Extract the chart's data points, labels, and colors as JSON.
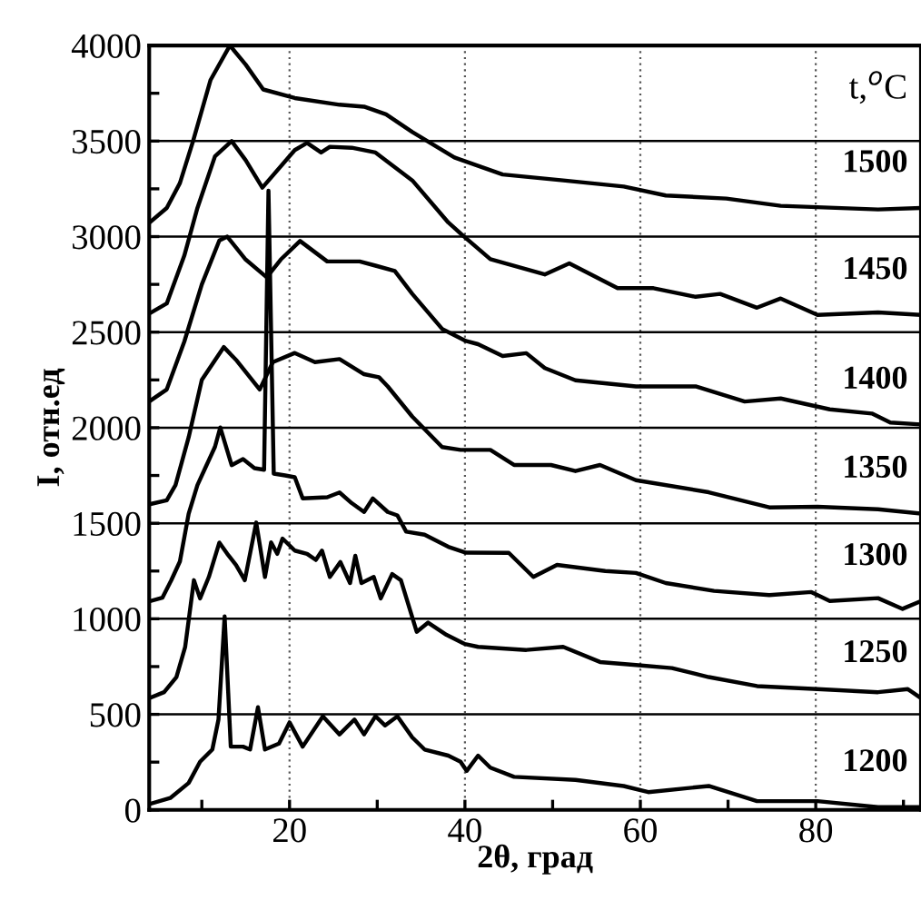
{
  "chart_data": {
    "type": "line",
    "xlabel": "2θ, град",
    "ylabel": "I, отн.ед",
    "legend_title": "t,$^{o}$C",
    "xlim": [
      4,
      92
    ],
    "ylim": [
      0,
      4000
    ],
    "xticks": [
      {
        "value": 10,
        "label": null
      },
      20,
      {
        "value": 30,
        "label": null
      },
      40,
      {
        "value": 50,
        "label": null
      },
      60,
      {
        "value": 70,
        "label": null
      },
      80,
      {
        "value": 90,
        "label": null
      }
    ],
    "yticks": [
      0,
      {
        "value": 250,
        "label": null
      },
      500,
      {
        "value": 750,
        "label": null
      },
      1000,
      {
        "value": 1250,
        "label": null
      },
      1500,
      {
        "value": 1750,
        "label": null
      },
      2000,
      {
        "value": 2250,
        "label": null
      },
      2500,
      {
        "value": 2750,
        "label": null
      },
      3000,
      {
        "value": 3250,
        "label": null
      },
      3500,
      {
        "value": 3750,
        "label": null
      },
      4000
    ],
    "grid": true,
    "legend": false,
    "marker": "none",
    "line_style": "solid",
    "series": [
      {
        "name": "1500",
        "color": "#000000",
        "x": [
          4,
          6,
          7.5,
          9,
          11,
          13.2,
          15,
          17,
          20.6,
          25.7,
          28.5,
          31,
          34,
          38.8,
          44.3,
          51.2,
          58.1,
          62.9,
          69.8,
          76,
          87.1,
          92
        ],
        "values": [
          3072,
          3150,
          3280,
          3500,
          3820,
          4000,
          3900,
          3770,
          3725,
          3690,
          3680,
          3640,
          3547,
          3414,
          3325,
          3294,
          3262,
          3215,
          3199,
          3161,
          3142,
          3150
        ]
      },
      {
        "name": "1450",
        "color": "#000000",
        "x": [
          4,
          6,
          8,
          9.5,
          11.5,
          13.4,
          15,
          16.9,
          20.6,
          22,
          23.6,
          24.6,
          27.1,
          29.8,
          34,
          38.1,
          40.1,
          42.9,
          49.1,
          51.9,
          57.4,
          61.5,
          66.3,
          69.1,
          73.3,
          76,
          80.2,
          87.1,
          92
        ],
        "values": [
          2597,
          2650,
          2900,
          3150,
          3420,
          3500,
          3400,
          3256,
          3453,
          3490,
          3440,
          3470,
          3465,
          3440,
          3294,
          3074,
          2992,
          2882,
          2802,
          2860,
          2730,
          2730,
          2685,
          2700,
          2628,
          2676,
          2590,
          2603,
          2590
        ]
      },
      {
        "name": "1400",
        "color": "#000000",
        "x": [
          4,
          6,
          8,
          10,
          12,
          12.9,
          15,
          17.4,
          19,
          21.2,
          24.3,
          28,
          29.8,
          32,
          34,
          37.4,
          40.1,
          41.5,
          44.3,
          47,
          49.1,
          52.6,
          59.5,
          66.3,
          71.9,
          76,
          81.6,
          86.4,
          88.5,
          92
        ],
        "values": [
          2137,
          2200,
          2450,
          2750,
          2980,
          3000,
          2880,
          2787,
          2880,
          2977,
          2870,
          2870,
          2848,
          2820,
          2700,
          2517,
          2454,
          2437,
          2375,
          2390,
          2312,
          2248,
          2216,
          2216,
          2137,
          2153,
          2096,
          2074,
          2027,
          2017
        ]
      },
      {
        "name": "1350",
        "color": "#000000",
        "x": [
          4,
          6,
          7,
          8.5,
          10,
          12.5,
          14,
          16.6,
          18.1,
          20.6,
          22.9,
          25.7,
          28.5,
          30.2,
          31.2,
          34,
          37.4,
          39.5,
          42.9,
          45.6,
          49.8,
          52.6,
          55.4,
          59.5,
          67.8,
          74.7,
          80.2,
          87.1,
          92
        ],
        "values": [
          1599,
          1620,
          1700,
          1950,
          2250,
          2422,
          2350,
          2200,
          2343,
          2391,
          2343,
          2359,
          2280,
          2264,
          2216,
          2058,
          1899,
          1884,
          1884,
          1805,
          1805,
          1773,
          1805,
          1725,
          1662,
          1583,
          1586,
          1573,
          1551
        ]
      },
      {
        "name": "1300",
        "color": "#000000",
        "x": [
          4,
          5.5,
          6.5,
          7.5,
          8.5,
          9.5,
          10.5,
          11.5,
          12.1,
          13.4,
          14.7,
          16,
          17.1,
          17.6,
          18.2,
          19.5,
          20.6,
          21.5,
          24.3,
          25.7,
          27.1,
          28.5,
          29.5,
          31.2,
          32.3,
          33.3,
          35.4,
          38.1,
          40.1,
          45,
          47.8,
          50.5,
          56,
          59.5,
          62.9,
          68.4,
          74.7,
          79.5,
          81.6,
          87.1,
          89.9,
          92
        ],
        "values": [
          1091,
          1110,
          1200,
          1300,
          1550,
          1700,
          1800,
          1900,
          2001,
          1804,
          1836,
          1788,
          1780,
          3240,
          1760,
          1750,
          1741,
          1630,
          1636,
          1661,
          1605,
          1559,
          1630,
          1559,
          1541,
          1456,
          1440,
          1377,
          1346,
          1345,
          1219,
          1282,
          1250,
          1240,
          1187,
          1146,
          1124,
          1140,
          1093,
          1108,
          1052,
          1093
        ]
      },
      {
        "name": "1250",
        "color": "#000000",
        "x": [
          4,
          5.7,
          7.1,
          8.1,
          9.1,
          9.8,
          10.8,
          12,
          12.9,
          13.9,
          14.9,
          16.2,
          17.2,
          17.9,
          18.6,
          19.2,
          20.6,
          22,
          23,
          23.7,
          24.6,
          25.8,
          26.9,
          27.5,
          28.2,
          29.6,
          30.4,
          31.7,
          32.7,
          34.5,
          35.8,
          37.9,
          40,
          41.5,
          47,
          51.2,
          55.4,
          59.5,
          63.6,
          67.8,
          73.3,
          80.2,
          87.1,
          90.5,
          92
        ],
        "values": [
          585,
          616,
          695,
          853,
          1202,
          1107,
          1219,
          1399,
          1340,
          1282,
          1202,
          1504,
          1219,
          1400,
          1340,
          1420,
          1357,
          1340,
          1308,
          1357,
          1219,
          1297,
          1187,
          1330,
          1187,
          1219,
          1107,
          1234,
          1202,
          932,
          980,
          916,
          868,
          853,
          837,
          853,
          774,
          758,
          742,
          695,
          648,
          632,
          616,
          632,
          585
        ]
      },
      {
        "name": "1200",
        "color": "#000000",
        "x": [
          4,
          6.4,
          8.5,
          9.8,
          11.2,
          11.9,
          12.6,
          13.3,
          14.7,
          15.5,
          16.4,
          17.2,
          18.8,
          20,
          21.5,
          23.8,
          25.7,
          27.4,
          28.5,
          29.8,
          30.9,
          32.3,
          34,
          35.4,
          38.1,
          39.5,
          40.2,
          41.5,
          42.9,
          45.6,
          52.6,
          58.1,
          60.9,
          67.8,
          73.3,
          80.2,
          87.1,
          92
        ],
        "values": [
          30,
          62,
          141,
          252,
          316,
          473,
          1012,
          331,
          331,
          316,
          537,
          316,
          347,
          458,
          331,
          490,
          395,
          473,
          395,
          490,
          442,
          490,
          379,
          316,
          284,
          252,
          204,
          284,
          221,
          173,
          157,
          125,
          93,
          125,
          46,
          46,
          14,
          14
        ]
      }
    ]
  }
}
